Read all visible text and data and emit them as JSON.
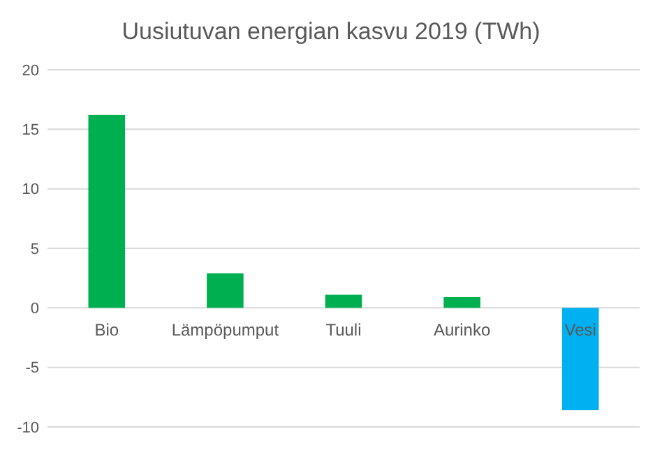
{
  "chart_data": {
    "type": "bar",
    "title": "Uusiutuvan energian kasvu 2019 (TWh)",
    "categories": [
      "Bio",
      "Lämpöpumput",
      "Tuuli",
      "Aurinko",
      "Vesi"
    ],
    "values": [
      16.2,
      2.9,
      1.1,
      0.9,
      -8.6
    ],
    "colors": [
      "#00b050",
      "#00b050",
      "#00b050",
      "#00b050",
      "#00b0f0"
    ],
    "ylim": [
      -10,
      20
    ],
    "yticks": [
      -10,
      -5,
      0,
      5,
      10,
      15,
      20
    ],
    "grid": "y"
  }
}
